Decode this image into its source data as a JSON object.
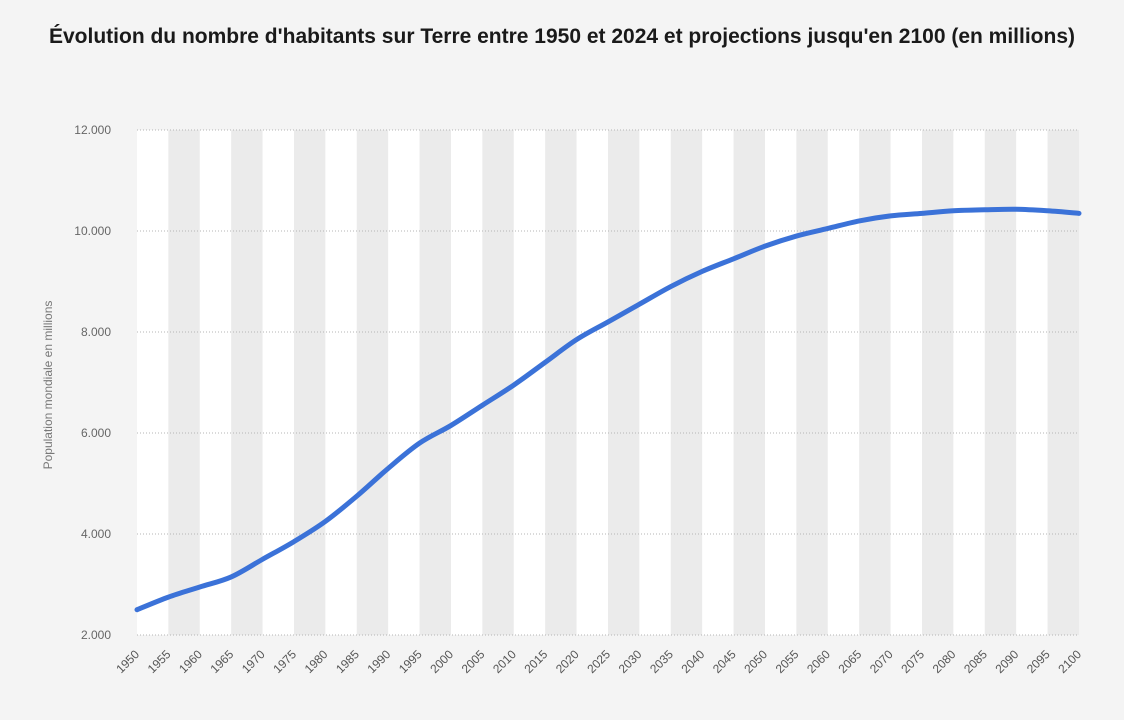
{
  "chart_data": {
    "type": "line",
    "title": "Évolution du nombre d'habitants sur Terre entre 1950 et 2024 et projections jusqu'en 2100 (en millions)",
    "xlabel": "",
    "ylabel": "Population mondiale en millions",
    "ylim": [
      2000,
      12000
    ],
    "yticks": [
      2000,
      4000,
      6000,
      8000,
      10000,
      12000
    ],
    "ytick_labels": [
      "2.000",
      "4.000",
      "6.000",
      "8.000",
      "10.000",
      "12.000"
    ],
    "xlim": [
      1950,
      2100
    ],
    "xtick_labels": [
      "1950",
      "1955",
      "1960",
      "1965",
      "1970",
      "1975",
      "1980",
      "1985",
      "1990",
      "1995",
      "2000",
      "2005",
      "2010",
      "2015",
      "2020",
      "2025",
      "2030",
      "2035",
      "2040",
      "2045",
      "2050",
      "2055",
      "2060",
      "2065",
      "2070",
      "2075",
      "2080",
      "2085",
      "2090",
      "2095",
      "2100"
    ],
    "grid": "horizontal dotted",
    "legend": "none",
    "line_color": "#3b72d8",
    "band_color": "#ebebeb",
    "series": [
      {
        "x": [
          1950,
          1955,
          1960,
          1965,
          1970,
          1975,
          1980,
          1985,
          1990,
          1995,
          2000,
          2005,
          2010,
          2015,
          2020,
          2025,
          2030,
          2035,
          2040,
          2045,
          2050,
          2055,
          2060,
          2065,
          2070,
          2075,
          2080,
          2085,
          2090,
          2095,
          2100
        ],
        "values": [
          2500,
          2750,
          2950,
          3150,
          3500,
          3850,
          4250,
          4750,
          5300,
          5800,
          6150,
          6550,
          6950,
          7400,
          7850,
          8200,
          8550,
          8900,
          9200,
          9450,
          9700,
          9900,
          10050,
          10200,
          10300,
          10350,
          10400,
          10420,
          10430,
          10400,
          10350
        ]
      }
    ]
  }
}
